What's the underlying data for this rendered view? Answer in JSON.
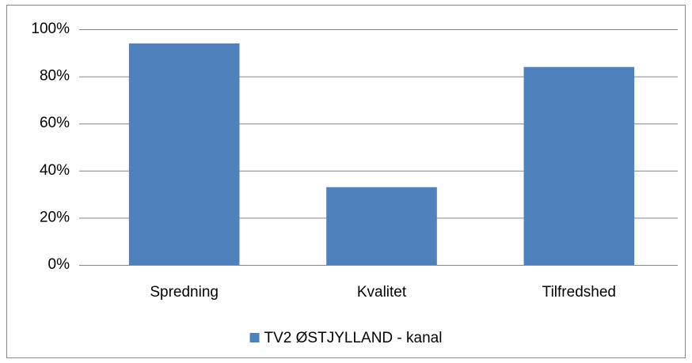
{
  "chart_data": {
    "type": "bar",
    "categories": [
      "Spredning",
      "Kvalitet",
      "Tilfredshed"
    ],
    "series": [
      {
        "name": "TV2 ØSTJYLLAND - kanal",
        "color": "#4f81bd",
        "values": [
          94,
          33,
          84
        ]
      }
    ],
    "ylim": [
      0,
      100
    ],
    "yticks": [
      {
        "value": 0,
        "label": "0%"
      },
      {
        "value": 20,
        "label": "20%"
      },
      {
        "value": 40,
        "label": "40%"
      },
      {
        "value": 60,
        "label": "60%"
      },
      {
        "value": 80,
        "label": "80%"
      },
      {
        "value": 100,
        "label": "100%"
      }
    ],
    "grid": true,
    "legend": "bottom"
  }
}
